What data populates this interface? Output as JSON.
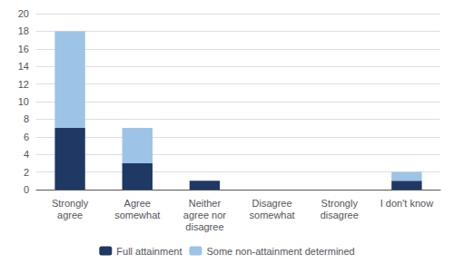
{
  "chart_data": {
    "type": "bar",
    "stacked": true,
    "categories": [
      "Strongly\nagree",
      "Agree\nsomewhat",
      "Neither\nagree nor\ndisagree",
      "Disagree\nsomewhat",
      "Strongly\ndisagree",
      "I don't know"
    ],
    "series": [
      {
        "name": "Full attainment",
        "color": "#1F3864",
        "values": [
          7,
          3,
          1,
          0,
          0,
          1
        ]
      },
      {
        "name": "Some non-attainment determined",
        "color": "#9DC3E6",
        "values": [
          11,
          4,
          0,
          0,
          0,
          1
        ]
      }
    ],
    "ylim": [
      0,
      20
    ],
    "yticks": [
      0,
      2,
      4,
      6,
      8,
      10,
      12,
      14,
      16,
      18,
      20
    ],
    "grid": true,
    "legend": "bottom"
  }
}
